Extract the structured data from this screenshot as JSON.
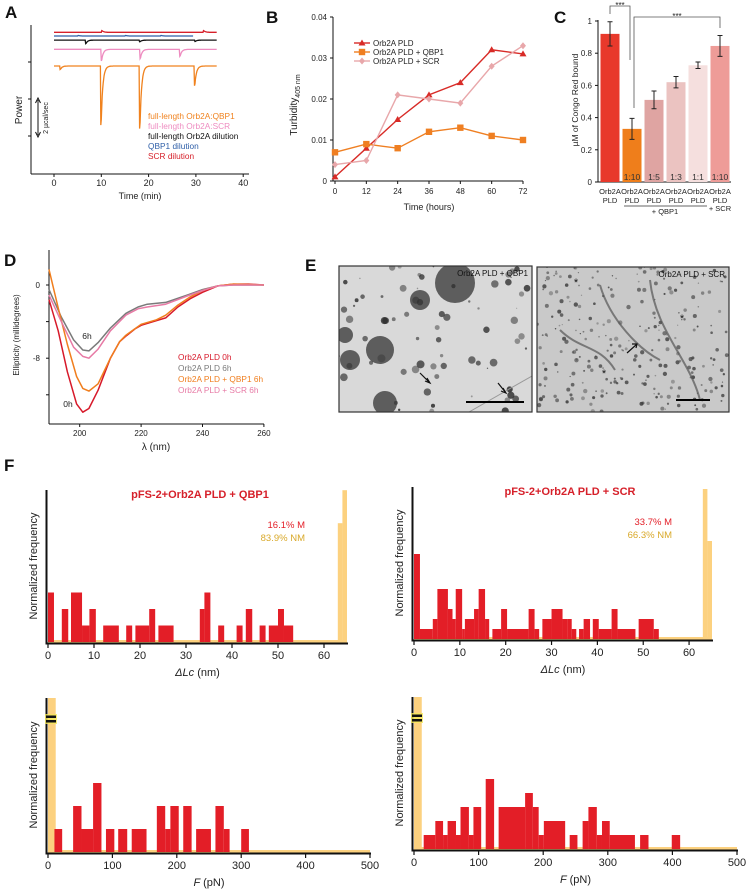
{
  "panel_labels": [
    "A",
    "B",
    "C",
    "D",
    "E",
    "F"
  ],
  "chart_data": [
    {
      "id": "A",
      "type": "line",
      "title": "",
      "xlabel": "Time (min)",
      "ylabel": "Power",
      "xlim": [
        -5,
        40
      ],
      "xticks": [
        "0",
        "10",
        "20",
        "30",
        "40"
      ],
      "xtick_values": [
        0,
        10,
        20,
        30,
        40
      ],
      "scale_bar_label": "2 µcal/sec",
      "scale_bar_value": 2,
      "series": [
        {
          "name": "full-length Orb2A:QBP1",
          "color": "#f0821e",
          "offset": 0,
          "end": 34.5,
          "peaks": [
            [
              1.2,
              -0.3
            ],
            [
              9.8,
              -5.1
            ],
            [
              18,
              -5.4
            ],
            [
              29.6,
              -1.7
            ]
          ]
        },
        {
          "name": "full-length Orb2A:SCR",
          "color": "#ee8cc0",
          "offset": 0.9,
          "end": 34.5,
          "peaks": [
            [
              9.9,
              -1.0
            ],
            [
              18.1,
              -0.8
            ],
            [
              26.5,
              -0.6
            ]
          ]
        },
        {
          "name": "full-length Orb2A dilution",
          "color": "#111111",
          "offset": 1.4,
          "end": 34.5,
          "peaks": [
            [
              6.6,
              -0.3
            ],
            [
              18,
              -0.15
            ],
            [
              29.7,
              -0.12
            ]
          ]
        },
        {
          "name": "QBP1 dilution",
          "color": "#2f5fa8",
          "offset": 1.62,
          "end": 29.5,
          "peaks": [
            [
              5,
              0.05
            ],
            [
              15,
              0.05
            ],
            [
              22.5,
              0.05
            ]
          ]
        },
        {
          "name": "SCR dilution",
          "color": "#d6202a",
          "offset": 1.82,
          "end": 34.5,
          "peaks": [
            [
              10,
              0.15
            ],
            [
              31.5,
              0.15
            ]
          ]
        }
      ]
    },
    {
      "id": "B",
      "type": "line",
      "xlabel": "Time (hours)",
      "ylabel": "Turbidity",
      "ylabel_sub": "405 nm",
      "x": [
        0,
        12,
        24,
        36,
        48,
        60,
        72
      ],
      "xticks": [
        "0",
        "12",
        "24",
        "36",
        "48",
        "60",
        "72"
      ],
      "ylim": [
        0,
        0.04
      ],
      "yticks": [
        "0",
        "0.01",
        "0.02",
        "0.03",
        "0.04"
      ],
      "ytick_values": [
        0,
        0.01,
        0.02,
        0.03,
        0.04
      ],
      "legend_position": "top-left",
      "series": [
        {
          "name": "Orb2A PLD",
          "color": "#d82b27",
          "marker": "triangle",
          "values": [
            0.001,
            0.008,
            0.015,
            0.021,
            0.024,
            0.032,
            0.031
          ]
        },
        {
          "name": "Orb2A PLD + QBP1",
          "color": "#ef7f22",
          "marker": "square",
          "values": [
            0.007,
            0.009,
            0.008,
            0.012,
            0.013,
            0.011,
            0.01
          ]
        },
        {
          "name": "Orb2A PLD + SCR",
          "color": "#e8a7aa",
          "marker": "diamond",
          "values": [
            0.004,
            0.005,
            0.021,
            0.02,
            0.019,
            0.028,
            0.033
          ]
        }
      ]
    },
    {
      "id": "C",
      "type": "bar",
      "ylabel": "µM of Congo Red bound",
      "ylim": [
        0,
        1
      ],
      "yticks": [
        "0",
        "0.2",
        "0.4",
        "0.6",
        "0.8",
        "1"
      ],
      "ytick_values": [
        0,
        0.2,
        0.4,
        0.6,
        0.8,
        1
      ],
      "categories": [
        {
          "line1": "Orb2A",
          "line2": "PLD",
          "ratio": "",
          "value": 0.92,
          "error": 0.075,
          "color": "#e8392b"
        },
        {
          "line1": "Orb2A",
          "line2": "PLD",
          "ratio": "1:10",
          "value": 0.33,
          "error": 0.065,
          "color": "#ef7e1b"
        },
        {
          "line1": "Orb2A",
          "line2": "PLD",
          "ratio": "1:5",
          "value": 0.51,
          "error": 0.055,
          "color": "#dfa4a2"
        },
        {
          "line1": "Orb2A",
          "line2": "PLD",
          "ratio": "1:3",
          "value": 0.62,
          "error": 0.035,
          "color": "#ebc3c1"
        },
        {
          "line1": "Orb2A",
          "line2": "PLD",
          "ratio": "1:1",
          "value": 0.725,
          "error": 0.02,
          "color": "#f5dfde"
        },
        {
          "line1": "Orb2A",
          "line2": "PLD",
          "ratio": "1:10",
          "value": 0.845,
          "error": 0.065,
          "color": "#ee9c98"
        }
      ],
      "group_label_qbp1": "+ QBP1",
      "group_label_scr": "+ SCR",
      "significance": [
        {
          "from": 0,
          "to": 1,
          "label": "***"
        },
        {
          "from": 1,
          "to": 5,
          "label": "***"
        }
      ]
    },
    {
      "id": "D",
      "type": "line",
      "xlabel": "λ (nm)",
      "ylabel": "Ellipticity (millidegrees)",
      "xlim": [
        190,
        260
      ],
      "xticks": [
        "200",
        "220",
        "240",
        "260"
      ],
      "xtick_values": [
        200,
        220,
        240,
        260
      ],
      "ylim": [
        -15.2,
        3.8
      ],
      "yticks": [
        "0",
        "-8"
      ],
      "ytick_values": [
        0,
        -8
      ],
      "annotations": [
        "6h",
        "0h"
      ],
      "series": [
        {
          "name": "Orb2A PLD 0h",
          "color": "#d7192a",
          "points": [
            [
              190,
              -1.6
            ],
            [
              193,
              -5
            ],
            [
              196,
              -9.5
            ],
            [
              199,
              -13
            ],
            [
              201,
              -13.9
            ],
            [
              203,
              -13.5
            ],
            [
              206,
              -11.5
            ],
            [
              210,
              -8
            ],
            [
              213,
              -6.2
            ],
            [
              215,
              -5.6
            ],
            [
              218,
              -4.8
            ],
            [
              220,
              -4.4
            ],
            [
              225,
              -3.9
            ],
            [
              228,
              -3.6
            ],
            [
              232,
              -2.4
            ],
            [
              236,
              -1.5
            ],
            [
              240,
              -0.8
            ],
            [
              245,
              -0.1
            ],
            [
              250,
              0.1
            ],
            [
              255,
              0.1
            ],
            [
              260,
              0
            ]
          ]
        },
        {
          "name": "Orb2A PLD 6h",
          "color": "#7a7a7a",
          "points": [
            [
              190,
              -0.5
            ],
            [
              194,
              -3.5
            ],
            [
              198,
              -6
            ],
            [
              201,
              -7.1
            ],
            [
              203,
              -7.2
            ],
            [
              206,
              -6.3
            ],
            [
              210,
              -4.7
            ],
            [
              215,
              -3.1
            ],
            [
              219,
              -2.4
            ],
            [
              222,
              -2.1
            ],
            [
              228,
              -1.9
            ],
            [
              235,
              -1.1
            ],
            [
              240,
              -0.5
            ],
            [
              245,
              -0.1
            ],
            [
              250,
              0
            ],
            [
              260,
              0
            ]
          ]
        },
        {
          "name": "Orb2A PLD + QBP1 6h",
          "color": "#f07e1e",
          "points": [
            [
              190,
              1.7
            ],
            [
              193,
              -2.5
            ],
            [
              196,
              -6.5
            ],
            [
              199,
              -10
            ],
            [
              201,
              -11.3
            ],
            [
              203,
              -11.6
            ],
            [
              206,
              -10.8
            ],
            [
              210,
              -8
            ],
            [
              213,
              -6.2
            ],
            [
              215,
              -5.5
            ],
            [
              220,
              -4.3
            ],
            [
              225,
              -3.8
            ],
            [
              228,
              -3.3
            ],
            [
              232,
              -2.2
            ],
            [
              236,
              -1.3
            ],
            [
              240,
              -0.6
            ],
            [
              245,
              -0.1
            ],
            [
              250,
              0.1
            ],
            [
              260,
              0
            ]
          ]
        },
        {
          "name": "Orb2A PLD + SCR 6h",
          "color": "#e77aa5",
          "points": [
            [
              190,
              -1.1
            ],
            [
              194,
              -4
            ],
            [
              198,
              -6.8
            ],
            [
              201,
              -7.8
            ],
            [
              203,
              -8
            ],
            [
              206,
              -7
            ],
            [
              210,
              -5
            ],
            [
              215,
              -3.3
            ],
            [
              219,
              -2.6
            ],
            [
              222,
              -2.4
            ],
            [
              228,
              -2.1
            ],
            [
              235,
              -1.2
            ],
            [
              240,
              -0.6
            ],
            [
              245,
              -0.1
            ],
            [
              250,
              0
            ],
            [
              260,
              0
            ]
          ]
        }
      ]
    },
    {
      "id": "F1",
      "type": "bar",
      "title": "pFS-2+Orb2A PLD + QBP1",
      "xlabel_symbol": "ΔLc",
      "xlabel_unit": "(nm)",
      "ylabel": "Normalized frequency",
      "xlim": [
        0,
        65
      ],
      "xticks": [
        "0",
        "10",
        "20",
        "30",
        "40",
        "50",
        "60"
      ],
      "xtick_values": [
        0,
        10,
        20,
        30,
        40,
        50,
        60
      ],
      "annotation_m": "16.1% M",
      "annotation_nm": "83.9% NM",
      "bars_m": [
        [
          0,
          1.3,
          3
        ],
        [
          3,
          4.4,
          2
        ],
        [
          5,
          7.4,
          3
        ],
        [
          7.4,
          9,
          1
        ],
        [
          9,
          10.4,
          2
        ],
        [
          12,
          15.4,
          1
        ],
        [
          17,
          18.3,
          1
        ],
        [
          19,
          22,
          1
        ],
        [
          22,
          23.3,
          2
        ],
        [
          24,
          27.3,
          1
        ],
        [
          33,
          34,
          2
        ],
        [
          34,
          35.3,
          3
        ],
        [
          37,
          38.3,
          1
        ],
        [
          41,
          42.3,
          1
        ],
        [
          43,
          44.4,
          2
        ],
        [
          46,
          47.3,
          1
        ],
        [
          48,
          50,
          1
        ],
        [
          50,
          51.3,
          2
        ],
        [
          51.3,
          53.3,
          1
        ]
      ],
      "bars_nm": [
        [
          63,
          64,
          7.2
        ],
        [
          64,
          65,
          9.2
        ]
      ]
    },
    {
      "id": "F2",
      "type": "bar",
      "title": "pFS-2+Orb2A PLD + SCR",
      "xlabel_symbol": "ΔLc",
      "xlabel_unit": "(nm)",
      "ylabel": "Normalized frequency",
      "xlim": [
        0,
        65
      ],
      "xticks": [
        "0",
        "10",
        "20",
        "30",
        "40",
        "50",
        "60"
      ],
      "xtick_values": [
        0,
        10,
        20,
        30,
        40,
        50,
        60
      ],
      "annotation_m": "33.7% M",
      "annotation_nm": "66.3% NM",
      "bars_m": [
        [
          0,
          1.3,
          8.5
        ],
        [
          1.3,
          4.1,
          1
        ],
        [
          4.1,
          5.1,
          2
        ],
        [
          5.1,
          7.4,
          5
        ],
        [
          7.4,
          8.4,
          3
        ],
        [
          8.4,
          9.1,
          2
        ],
        [
          9.1,
          10.5,
          5
        ],
        [
          10.5,
          11.1,
          1
        ],
        [
          11.1,
          13.1,
          2
        ],
        [
          13.1,
          14.1,
          3
        ],
        [
          14.1,
          15.5,
          5
        ],
        [
          15.5,
          16.4,
          2
        ],
        [
          17.1,
          19,
          1
        ],
        [
          19,
          20.3,
          3
        ],
        [
          20.3,
          25,
          1
        ],
        [
          25,
          26.3,
          3
        ],
        [
          26.3,
          27.3,
          1
        ],
        [
          28,
          30,
          2
        ],
        [
          30,
          32.4,
          3
        ],
        [
          32.4,
          33.4,
          2
        ],
        [
          33.4,
          34.4,
          2
        ],
        [
          34.4,
          35.4,
          1
        ],
        [
          36,
          37,
          1
        ],
        [
          37,
          38.4,
          2
        ],
        [
          39,
          40.3,
          2
        ],
        [
          40.3,
          43.1,
          1
        ],
        [
          43.1,
          44.4,
          3
        ],
        [
          44.4,
          48.3,
          1
        ],
        [
          49,
          52.3,
          2
        ],
        [
          52.3,
          53.4,
          1
        ]
      ],
      "bars_nm": [
        [
          63,
          64,
          15
        ],
        [
          64,
          65,
          9.8
        ]
      ]
    },
    {
      "id": "F3",
      "type": "bar",
      "xlabel_symbol": "F",
      "xlabel_unit": "(pN)",
      "ylabel": "Normalized frequency",
      "xlim": [
        0,
        500
      ],
      "xticks": [
        "0",
        "100",
        "200",
        "300",
        "400",
        "500"
      ],
      "xtick_values": [
        0,
        100,
        200,
        300,
        400,
        500
      ],
      "axis_break": true,
      "bars_m": [
        [
          10,
          22,
          1
        ],
        [
          39,
          52,
          2
        ],
        [
          52,
          70,
          1
        ],
        [
          70,
          83,
          3
        ],
        [
          90,
          103,
          1
        ],
        [
          109,
          123,
          1
        ],
        [
          130,
          153,
          1
        ],
        [
          169,
          182,
          2
        ],
        [
          182,
          190,
          1
        ],
        [
          190,
          203,
          2
        ],
        [
          210,
          223,
          2
        ],
        [
          230,
          253,
          1
        ],
        [
          260,
          273,
          2
        ],
        [
          273,
          282,
          1
        ],
        [
          300,
          312,
          1
        ]
      ],
      "bars_nm": [
        [
          0,
          12,
          6.7
        ]
      ]
    },
    {
      "id": "F4",
      "type": "bar",
      "xlabel_symbol": "F",
      "xlabel_unit": "(pN)",
      "ylabel": "Normalized frequency",
      "xlim": [
        0,
        500
      ],
      "xticks": [
        "0",
        "100",
        "200",
        "300",
        "400",
        "500"
      ],
      "xtick_values": [
        0,
        100,
        200,
        300,
        400,
        500
      ],
      "axis_break": true,
      "bars_m": [
        [
          15,
          33,
          1
        ],
        [
          33,
          45,
          2
        ],
        [
          45,
          52,
          1
        ],
        [
          52,
          65,
          2
        ],
        [
          65,
          72,
          1
        ],
        [
          72,
          85,
          3
        ],
        [
          85,
          92,
          1
        ],
        [
          92,
          104,
          3
        ],
        [
          111,
          124,
          5
        ],
        [
          131,
          172,
          3
        ],
        [
          172,
          184,
          4
        ],
        [
          184,
          193,
          3
        ],
        [
          193,
          201,
          1
        ],
        [
          201,
          234,
          2
        ],
        [
          241,
          253,
          1
        ],
        [
          261,
          270,
          2
        ],
        [
          270,
          283,
          3
        ],
        [
          283,
          291,
          1
        ],
        [
          291,
          303,
          2
        ],
        [
          303,
          342,
          1
        ],
        [
          350,
          363,
          1
        ],
        [
          399,
          412,
          1
        ]
      ],
      "bars_nm": [
        [
          0,
          12,
          10.9
        ]
      ]
    }
  ],
  "panel_E": {
    "images": [
      {
        "label": "Orb2A PLD + QBP1",
        "markers": "arrows"
      },
      {
        "label": "Orb2A PLD + SCR",
        "markers": "arrow-and-asterisks"
      }
    ],
    "asterisk": "*"
  },
  "colors": {
    "m": "#e31e27",
    "nm": "#fcd17f",
    "nm_text": "#d9a92a",
    "title_red": "#d6202a"
  }
}
